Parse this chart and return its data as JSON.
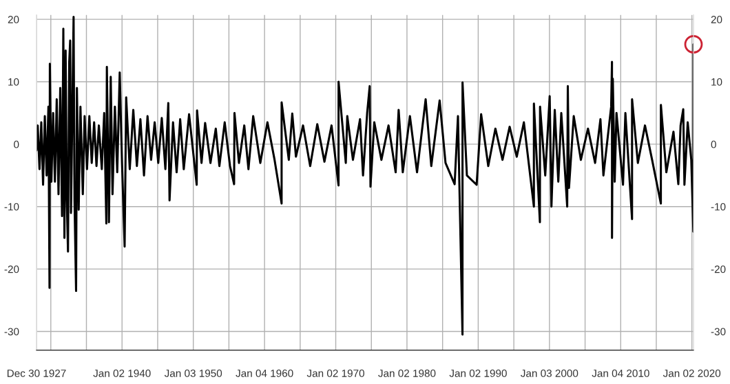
{
  "chart_data": {
    "type": "line",
    "x": [
      "1927-12-30",
      "1928-03-01",
      "1928-06-01",
      "1928-09-01",
      "1928-12-01",
      "1929-03-01",
      "1929-06-01",
      "1929-09-01",
      "1929-10-28",
      "1929-11-14",
      "1930-02-01",
      "1930-05-01",
      "1930-08-01",
      "1930-11-01",
      "1931-02-01",
      "1931-05-01",
      "1931-08-01",
      "1931-10-06",
      "1931-12-01",
      "1932-02-01",
      "1932-04-01",
      "1932-06-01",
      "1932-08-01",
      "1932-09-21",
      "1932-11-01",
      "1933-03-15",
      "1933-05-01",
      "1933-07-21",
      "1933-09-01",
      "1933-12-01",
      "1934-03-01",
      "1934-07-01",
      "1934-10-01",
      "1935-02-01",
      "1935-06-01",
      "1935-10-01",
      "1936-02-01",
      "1936-06-01",
      "1936-10-01",
      "1937-03-01",
      "1937-07-01",
      "1937-10-19",
      "1937-11-15",
      "1938-03-01",
      "1938-06-01",
      "1938-09-01",
      "1939-01-01",
      "1939-05-01",
      "1939-09-05",
      "1940-01-01",
      "1940-05-14",
      "1940-08-01",
      "1941-02-01",
      "1941-08-01",
      "1942-02-01",
      "1942-08-01",
      "1943-02-01",
      "1943-08-01",
      "1944-02-01",
      "1944-08-01",
      "1945-02-01",
      "1945-08-01",
      "1946-02-01",
      "1946-07-01",
      "1946-09-03",
      "1947-03-01",
      "1947-09-01",
      "1948-03-01",
      "1948-09-01",
      "1949-06-01",
      "1950-06-26",
      "1950-07-15",
      "1951-03-01",
      "1951-09-01",
      "1952-06-01",
      "1953-03-01",
      "1953-09-01",
      "1954-06-01",
      "1955-03-01",
      "1955-09-26",
      "1955-10-15",
      "1956-06-01",
      "1957-03-01",
      "1957-10-01",
      "1958-06-01",
      "1959-06-01",
      "1960-06-01",
      "1961-06-01",
      "1962-05-28",
      "1962-05-29",
      "1963-06-01",
      "1963-11-26",
      "1964-06-01",
      "1965-06-01",
      "1966-06-01",
      "1967-06-01",
      "1968-06-01",
      "1969-06-01",
      "1970-05-25",
      "1970-05-27",
      "1971-06-01",
      "1971-08-16",
      "1972-06-01",
      "1973-06-01",
      "1973-11-01",
      "1974-06-01",
      "1974-10-09",
      "1974-11-18",
      "1975-06-01",
      "1976-06-01",
      "1977-06-01",
      "1978-06-01",
      "1978-11-01",
      "1979-06-01",
      "1980-06-01",
      "1981-06-01",
      "1982-08-17",
      "1983-06-01",
      "1984-08-03",
      "1985-06-01",
      "1986-09-11",
      "1987-03-01",
      "1987-10-19",
      "1987-10-21",
      "1988-06-01",
      "1989-10-13",
      "1990-06-01",
      "1991-06-01",
      "1992-06-01",
      "1993-06-01",
      "1994-06-01",
      "1995-06-01",
      "1996-06-01",
      "1997-10-27",
      "1997-10-28",
      "1998-08-31",
      "1998-09-08",
      "1999-06-01",
      "2000-01-15",
      "2000-04-14",
      "2000-10-01",
      "2001-04-01",
      "2001-09-01",
      "2002-07-01",
      "2002-08-01",
      "2002-10-01",
      "2003-06-01",
      "2004-06-01",
      "2005-06-01",
      "2006-06-01",
      "2007-03-01",
      "2007-08-01",
      "2008-09-01",
      "2008-10-13",
      "2008-10-15",
      "2008-11-24",
      "2009-03-01",
      "2009-06-01",
      "2010-05-01",
      "2010-09-01",
      "2011-08-08",
      "2011-08-09",
      "2012-06-01",
      "2013-06-01",
      "2014-06-01",
      "2015-08-24",
      "2015-08-26",
      "2016-06-01",
      "2017-06-01",
      "2018-02-05",
      "2018-06-01",
      "2018-10-15",
      "2018-12-15",
      "2019-06-01",
      "2019-12-01",
      "2020-03-16",
      "2020-03-24"
    ],
    "series": [
      {
        "color": "#000000",
        "values": [
          -1.0,
          3.0,
          -4,
          3.5,
          -6.5,
          4.5,
          -5,
          6,
          -23,
          12.9,
          -6,
          5,
          -6,
          7.2,
          -8,
          9,
          -11.5,
          18.5,
          -15,
          15,
          -9,
          -17.2,
          13,
          16.6,
          -11,
          20.4,
          -9,
          -23.5,
          9,
          -10.5,
          6,
          -8,
          4.5,
          -4,
          4.5,
          -3,
          3.5,
          -3.5,
          3,
          -4,
          5,
          -12.7,
          12.4,
          -12.5,
          10.8,
          -8,
          6,
          -4.5,
          11.5,
          -3,
          -16.4,
          7.5,
          -4,
          5.5,
          -3.5,
          4,
          -5,
          4.5,
          -2.5,
          3.5,
          -3,
          4.2,
          -4,
          6.6,
          -9,
          3.5,
          -4.5,
          4,
          -4,
          4.8,
          -6.5,
          5.4,
          -3,
          3.4,
          -3,
          2.5,
          -3.5,
          3.5,
          -3.5,
          -6.4,
          5,
          -3,
          3,
          -4,
          4.5,
          -3,
          3.5,
          -2.5,
          -9.5,
          6.7,
          -2.5,
          4.9,
          -2,
          3,
          -3.5,
          3.2,
          -2.8,
          3,
          -6.6,
          10,
          -3,
          4.5,
          -2.5,
          4,
          -5,
          5,
          9.3,
          -6.8,
          3.5,
          -2.5,
          3,
          -4.5,
          5.5,
          -4.5,
          4.5,
          -4.5,
          7.2,
          -3.5,
          7,
          -3,
          -6.4,
          4.5,
          -30.5,
          9.9,
          -5,
          -6.5,
          4.8,
          -3.5,
          2.5,
          -2.5,
          2.8,
          -2,
          3.5,
          -10,
          6.5,
          -12.5,
          6,
          -5,
          7.7,
          -10,
          5.5,
          -6,
          5,
          -10,
          9.3,
          -7,
          4.5,
          -2.5,
          2.5,
          -3,
          4,
          -5,
          6,
          13.2,
          -15,
          10.5,
          -6,
          5,
          -6.5,
          5,
          -12,
          7.2,
          -3,
          3,
          -2.5,
          -9.5,
          6.3,
          -4.5,
          2,
          -6.4,
          3,
          5.6,
          -6.5,
          3.5,
          -2.5,
          -14,
          16
        ]
      }
    ],
    "xlim": [
      "1927-12-30",
      "2020-03-24"
    ],
    "xticks": [
      {
        "value": "1927-12-30",
        "label": "Dec 30 1927"
      },
      {
        "value": "1930-01-02",
        "label": null
      },
      {
        "value": "1935-01-02",
        "label": null
      },
      {
        "value": "1940-01-02",
        "label": "Jan 02 1940"
      },
      {
        "value": "1945-01-02",
        "label": null
      },
      {
        "value": "1950-01-03",
        "label": "Jan 03 1950"
      },
      {
        "value": "1955-01-03",
        "label": null
      },
      {
        "value": "1960-01-04",
        "label": "Jan 04 1960"
      },
      {
        "value": "1965-01-04",
        "label": null
      },
      {
        "value": "1970-01-02",
        "label": "Jan 02 1970"
      },
      {
        "value": "1975-01-02",
        "label": null
      },
      {
        "value": "1980-01-02",
        "label": "Jan 02 1980"
      },
      {
        "value": "1985-01-02",
        "label": null
      },
      {
        "value": "1990-01-02",
        "label": "Jan 02 1990"
      },
      {
        "value": "1995-01-03",
        "label": null
      },
      {
        "value": "2000-01-03",
        "label": "Jan 03 2000"
      },
      {
        "value": "2005-01-03",
        "label": null
      },
      {
        "value": "2010-01-04",
        "label": "Jan 04 2010"
      },
      {
        "value": "2015-01-02",
        "label": null
      },
      {
        "value": "2020-01-02",
        "label": "Jan 02 2020"
      }
    ],
    "ylim": [
      -33,
      20.7
    ],
    "yticks": [
      -30,
      -20,
      -10,
      0,
      10,
      20
    ],
    "y2lim": [
      -33,
      20.7
    ],
    "y2ticks": [
      -30,
      -20,
      -10,
      0,
      10,
      20
    ],
    "grid": true,
    "line_style": "solid"
  }
}
